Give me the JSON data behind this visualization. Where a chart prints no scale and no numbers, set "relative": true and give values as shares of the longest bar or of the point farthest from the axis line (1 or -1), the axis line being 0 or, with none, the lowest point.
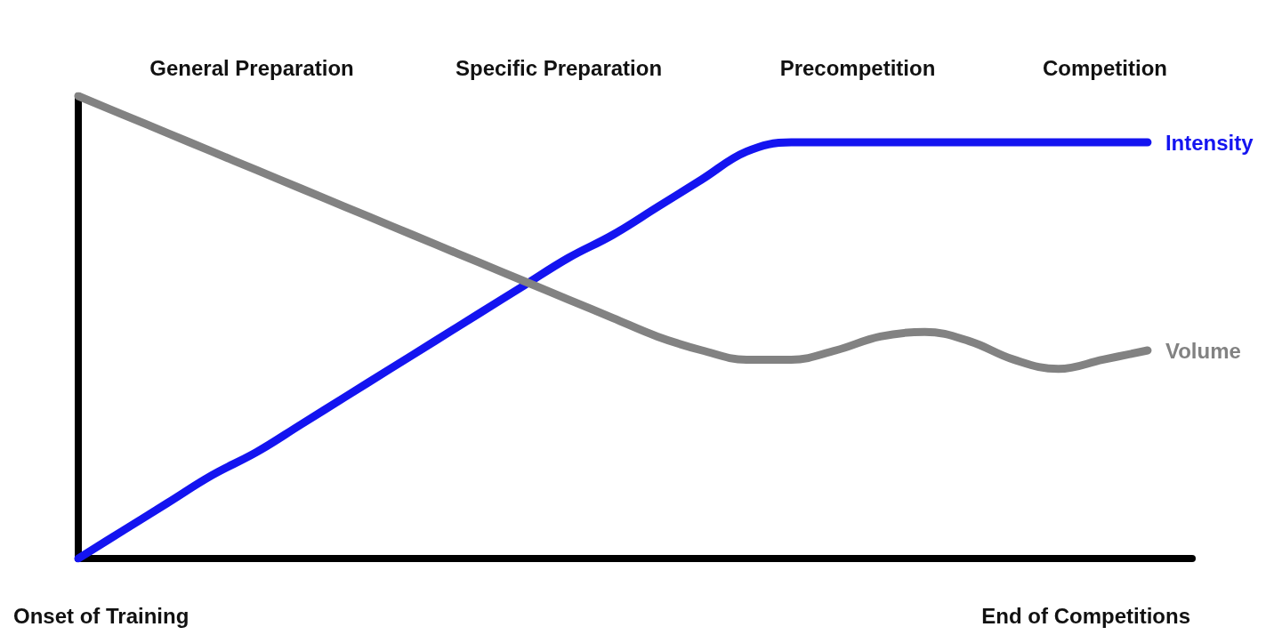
{
  "chart_data": {
    "type": "line",
    "relative": true,
    "legend": false,
    "grid": false,
    "marker": "none",
    "line_style": "solid",
    "categories": [
      null,
      null,
      null,
      null,
      null,
      null,
      null,
      null,
      null,
      null,
      null,
      null,
      null,
      null,
      null,
      null,
      null,
      null,
      null,
      null,
      null,
      null,
      null,
      null,
      null,
      null
    ],
    "series": [
      {
        "name": "Intensity",
        "color": "#1414f0",
        "values": [
          0,
          0.06,
          0.12,
          0.18,
          0.23,
          0.29,
          0.35,
          0.41,
          0.47,
          0.53,
          0.59,
          0.65,
          0.7,
          0.76,
          0.82,
          0.88,
          0.9,
          0.9,
          0.9,
          0.9,
          0.9,
          0.9,
          0.9,
          0.9,
          0.9,
          null
        ]
      },
      {
        "name": "Volume",
        "color": "#828282",
        "values": [
          1,
          0.96,
          0.92,
          0.88,
          0.84,
          0.8,
          0.76,
          0.72,
          0.68,
          0.64,
          0.6,
          0.56,
          0.52,
          0.48,
          0.45,
          0.43,
          0.43,
          0.45,
          0.48,
          0.49,
          0.47,
          0.43,
          0.41,
          0.43,
          0.45,
          null
        ]
      }
    ],
    "annotations": [
      "General Preparation",
      "Specific Preparation",
      "Precompetition",
      "Competition",
      "Onset of Training",
      "End of Competitions"
    ]
  }
}
